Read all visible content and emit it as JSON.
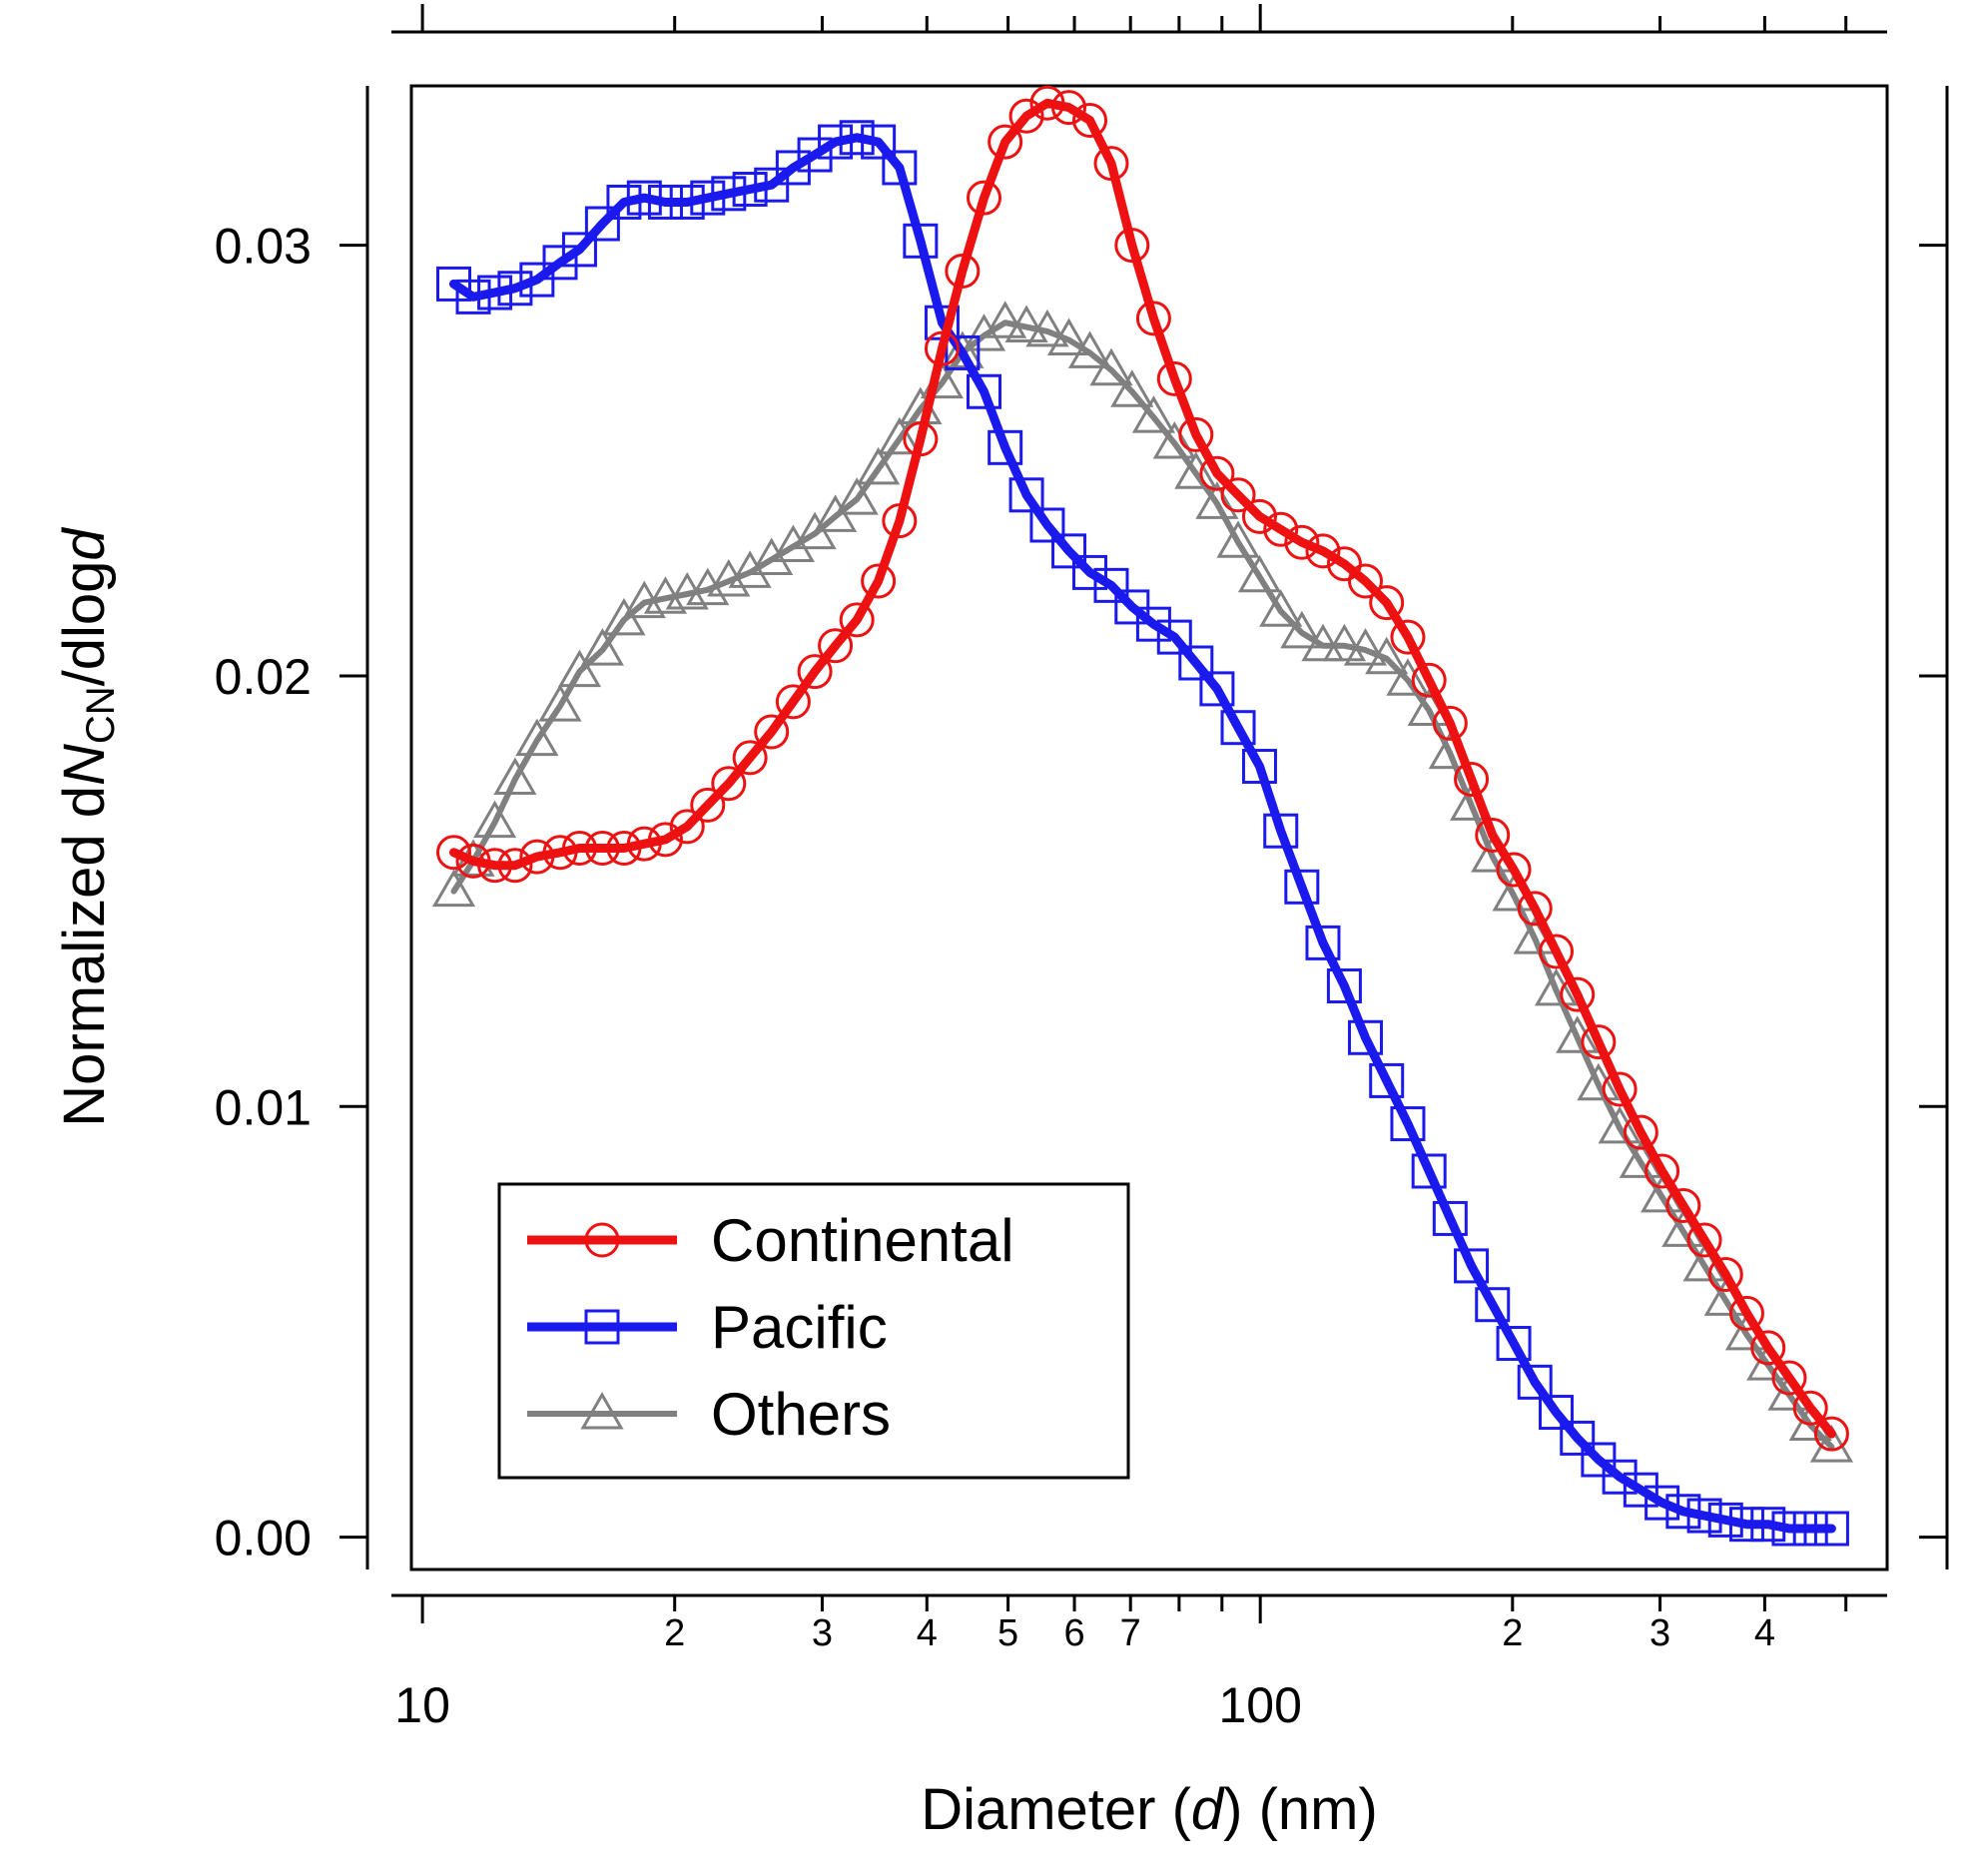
{
  "chart_data": {
    "type": "line",
    "xlabel_parts": [
      "Diameter (",
      "d",
      ") (nm)"
    ],
    "ylabel_parts": [
      "Normalized d",
      "N",
      "CN",
      "/dlog",
      "d"
    ],
    "x_scale": "log",
    "xlim": [
      9.7,
      560
    ],
    "ylim": [
      -0.00075,
      0.0337
    ],
    "x_major_ticks": [
      {
        "value": 10,
        "label": "10"
      },
      {
        "value": 100,
        "label": "100"
      }
    ],
    "x_minor_ticks": [
      {
        "value": 20,
        "label": "2"
      },
      {
        "value": 30,
        "label": "3"
      },
      {
        "value": 40,
        "label": "4"
      },
      {
        "value": 50,
        "label": "5"
      },
      {
        "value": 60,
        "label": "6"
      },
      {
        "value": 70,
        "label": "7"
      },
      {
        "value": 80,
        "label": ""
      },
      {
        "value": 90,
        "label": ""
      },
      {
        "value": 200,
        "label": "2"
      },
      {
        "value": 300,
        "label": "3"
      },
      {
        "value": 400,
        "label": "4"
      },
      {
        "value": 500,
        "label": ""
      }
    ],
    "y_ticks": [
      {
        "value": 0.0,
        "label": "0.00"
      },
      {
        "value": 0.01,
        "label": "0.01"
      },
      {
        "value": 0.02,
        "label": "0.02"
      },
      {
        "value": 0.03,
        "label": "0.03"
      }
    ],
    "grid": false,
    "legend_position": "bottom-left",
    "series": [
      {
        "name": "Continental",
        "color": "#ee1111",
        "marker": "circle",
        "x": [
          10.9,
          11.5,
          12.2,
          12.9,
          13.7,
          14.6,
          15.4,
          16.4,
          17.4,
          18.4,
          19.5,
          20.7,
          21.9,
          23.2,
          24.6,
          26.1,
          27.7,
          29.4,
          31.1,
          33.0,
          35.0,
          37.1,
          39.3,
          41.7,
          44.1,
          46.8,
          49.6,
          52.6,
          55.7,
          59.1,
          62.6,
          66.4,
          70.3,
          74.6,
          79.0,
          83.8,
          88.8,
          94.1,
          99.8,
          105.8,
          112.1,
          118.8,
          126.0,
          133.5,
          141.5,
          150.0,
          159.0,
          168.5,
          178.6,
          189.3,
          200.7,
          212.7,
          225.5,
          239.0,
          253.3,
          268.5,
          284.6,
          301.7,
          319.8,
          339.0,
          359.3,
          380.8,
          403.7,
          427.9,
          453.6,
          480.8
        ],
        "y": [
          0.0159,
          0.0157,
          0.0156,
          0.0156,
          0.0158,
          0.0159,
          0.016,
          0.016,
          0.016,
          0.0161,
          0.0162,
          0.0165,
          0.017,
          0.0175,
          0.0181,
          0.0187,
          0.0194,
          0.0201,
          0.0207,
          0.0213,
          0.0222,
          0.0236,
          0.0255,
          0.0276,
          0.0294,
          0.0311,
          0.0324,
          0.033,
          0.0333,
          0.0332,
          0.0329,
          0.0319,
          0.03,
          0.0283,
          0.0269,
          0.0256,
          0.0247,
          0.0242,
          0.0237,
          0.0234,
          0.0231,
          0.0229,
          0.0226,
          0.0222,
          0.0217,
          0.0209,
          0.0199,
          0.0189,
          0.0176,
          0.0163,
          0.0155,
          0.0146,
          0.0136,
          0.0126,
          0.0115,
          0.0104,
          0.0094,
          0.0085,
          0.0077,
          0.0069,
          0.0061,
          0.0052,
          0.0044,
          0.0037,
          0.003,
          0.0024
        ]
      },
      {
        "name": "Pacific",
        "color": "#1a1aee",
        "marker": "square",
        "x": [
          10.9,
          11.5,
          12.2,
          12.9,
          13.7,
          14.6,
          15.4,
          16.4,
          17.4,
          18.4,
          19.5,
          20.7,
          21.9,
          23.2,
          24.6,
          26.1,
          27.7,
          29.4,
          31.1,
          33.0,
          35.0,
          37.1,
          39.3,
          41.7,
          44.1,
          46.8,
          49.6,
          52.6,
          55.7,
          59.1,
          62.6,
          66.4,
          70.3,
          74.6,
          79.0,
          83.8,
          88.8,
          94.1,
          99.8,
          105.8,
          112.1,
          118.8,
          126.0,
          133.5,
          141.5,
          150.0,
          159.0,
          168.5,
          178.6,
          189.3,
          200.7,
          212.7,
          225.5,
          239.0,
          253.3,
          268.5,
          284.6,
          301.7,
          319.8,
          339.0,
          359.3,
          380.8,
          403.7,
          427.9,
          453.6,
          480.8
        ],
        "y": [
          0.0291,
          0.0288,
          0.0289,
          0.029,
          0.0292,
          0.0296,
          0.0299,
          0.0305,
          0.031,
          0.0311,
          0.031,
          0.031,
          0.0311,
          0.0312,
          0.0313,
          0.0314,
          0.0318,
          0.0321,
          0.0324,
          0.0325,
          0.0324,
          0.0318,
          0.0301,
          0.0282,
          0.0275,
          0.0266,
          0.0253,
          0.0242,
          0.0235,
          0.0229,
          0.0224,
          0.0221,
          0.0216,
          0.0212,
          0.0209,
          0.0203,
          0.0197,
          0.0188,
          0.0179,
          0.0164,
          0.0151,
          0.0138,
          0.0128,
          0.0116,
          0.0106,
          0.0096,
          0.0085,
          0.0074,
          0.0063,
          0.0054,
          0.0045,
          0.0036,
          0.0029,
          0.0023,
          0.0018,
          0.0014,
          0.0011,
          0.0008,
          0.0006,
          0.0005,
          0.0004,
          0.0003,
          0.0003,
          0.0002,
          0.0002,
          0.0002
        ]
      },
      {
        "name": "Others",
        "color": "#808080",
        "marker": "triangle",
        "x": [
          10.9,
          11.5,
          12.2,
          12.9,
          13.7,
          14.6,
          15.4,
          16.4,
          17.4,
          18.4,
          19.5,
          20.7,
          21.9,
          23.2,
          24.6,
          26.1,
          27.7,
          29.4,
          31.1,
          33.0,
          35.0,
          37.1,
          39.3,
          41.7,
          44.1,
          46.8,
          49.6,
          52.6,
          55.7,
          59.1,
          62.6,
          66.4,
          70.3,
          74.6,
          79.0,
          83.8,
          88.8,
          94.1,
          99.8,
          105.8,
          112.1,
          118.8,
          126.0,
          133.5,
          141.5,
          150.0,
          159.0,
          168.5,
          178.6,
          189.3,
          200.7,
          212.7,
          225.5,
          239.0,
          253.3,
          268.5,
          284.6,
          301.7,
          319.8,
          339.0,
          359.3,
          380.8,
          403.7,
          427.9,
          453.6,
          480.8
        ],
        "y": [
          0.015,
          0.0157,
          0.0166,
          0.0176,
          0.0185,
          0.0193,
          0.0201,
          0.0206,
          0.0213,
          0.0217,
          0.0218,
          0.0219,
          0.022,
          0.0222,
          0.0224,
          0.0227,
          0.023,
          0.0233,
          0.0237,
          0.0241,
          0.0248,
          0.0255,
          0.0262,
          0.0268,
          0.0275,
          0.0279,
          0.0282,
          0.0281,
          0.028,
          0.0278,
          0.0275,
          0.0271,
          0.0266,
          0.026,
          0.0254,
          0.0247,
          0.024,
          0.0231,
          0.0223,
          0.0215,
          0.021,
          0.0207,
          0.0207,
          0.0206,
          0.0204,
          0.0199,
          0.0192,
          0.0182,
          0.017,
          0.0158,
          0.0149,
          0.0139,
          0.0127,
          0.0116,
          0.0105,
          0.0095,
          0.0087,
          0.0079,
          0.0071,
          0.0063,
          0.0055,
          0.0047,
          0.004,
          0.0033,
          0.0026,
          0.0021
        ]
      }
    ]
  }
}
